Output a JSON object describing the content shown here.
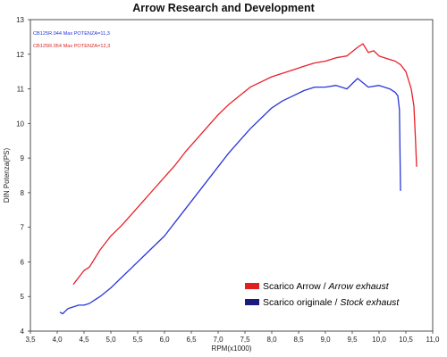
{
  "chart_data": {
    "type": "line",
    "title": "Arrow Research and Development",
    "xlabel": "RPM(x1000)",
    "ylabel": "DIN Potenza(PS)",
    "xlim": [
      3.5,
      11.0
    ],
    "ylim": [
      4,
      13
    ],
    "x_ticks": [
      "3,5",
      "4,0",
      "4,5",
      "5,0",
      "5,5",
      "6,0",
      "6,5",
      "7,0",
      "7,5",
      "8,0",
      "8,5",
      "9,0",
      "9,5",
      "10,0",
      "10,5",
      "11,0"
    ],
    "y_ticks": [
      "4",
      "5",
      "6",
      "7",
      "8",
      "9",
      "10",
      "11",
      "12",
      "13"
    ],
    "grid": false,
    "annotations": [
      {
        "text": "CB125R.044  Max POTENZA=11,3",
        "color": "#2233dd"
      },
      {
        "text": "CB125R.054  Max POTENZA=12,3",
        "color": "#dd2222"
      }
    ],
    "legend": {
      "position": "bottom-right",
      "entries": [
        {
          "series": "arrow",
          "normal": "Scarico Arrow / ",
          "italic": "Arrow exhaust",
          "color": "#e02020"
        },
        {
          "series": "stock",
          "normal": "Scarico originale / ",
          "italic": "Stock exhaust",
          "color": "#1a1a80"
        }
      ]
    },
    "series": [
      {
        "id": "arrow",
        "color": "#e8202a",
        "x": [
          4.3,
          4.4,
          4.5,
          4.6,
          4.7,
          4.8,
          4.9,
          5.0,
          5.2,
          5.4,
          5.6,
          5.8,
          6.0,
          6.2,
          6.4,
          6.6,
          6.8,
          7.0,
          7.2,
          7.4,
          7.6,
          7.8,
          8.0,
          8.2,
          8.4,
          8.6,
          8.8,
          9.0,
          9.2,
          9.4,
          9.6,
          9.7,
          9.8,
          9.9,
          10.0,
          10.1,
          10.2,
          10.3,
          10.4,
          10.5,
          10.6,
          10.65,
          10.68,
          10.7
        ],
        "y": [
          5.35,
          5.55,
          5.75,
          5.85,
          6.1,
          6.35,
          6.55,
          6.75,
          7.05,
          7.4,
          7.75,
          8.1,
          8.45,
          8.8,
          9.2,
          9.55,
          9.9,
          10.25,
          10.55,
          10.8,
          11.05,
          11.2,
          11.35,
          11.45,
          11.55,
          11.65,
          11.75,
          11.8,
          11.9,
          11.95,
          12.2,
          12.3,
          12.05,
          12.1,
          11.95,
          11.9,
          11.85,
          11.8,
          11.7,
          11.5,
          11.0,
          10.5,
          9.5,
          8.75
        ]
      },
      {
        "id": "stock",
        "color": "#2a36d8",
        "x": [
          4.05,
          4.1,
          4.2,
          4.3,
          4.4,
          4.5,
          4.6,
          4.7,
          4.8,
          5.0,
          5.2,
          5.4,
          5.6,
          5.8,
          6.0,
          6.2,
          6.4,
          6.6,
          6.8,
          7.0,
          7.2,
          7.4,
          7.6,
          7.8,
          8.0,
          8.2,
          8.4,
          8.6,
          8.8,
          9.0,
          9.2,
          9.4,
          9.6,
          9.8,
          10.0,
          10.2,
          10.3,
          10.35,
          10.38,
          10.4
        ],
        "y": [
          4.55,
          4.5,
          4.65,
          4.7,
          4.75,
          4.75,
          4.8,
          4.9,
          5.0,
          5.25,
          5.55,
          5.85,
          6.15,
          6.45,
          6.75,
          7.15,
          7.55,
          7.95,
          8.35,
          8.75,
          9.15,
          9.5,
          9.85,
          10.15,
          10.45,
          10.65,
          10.8,
          10.95,
          11.05,
          11.05,
          11.1,
          11.0,
          11.3,
          11.05,
          11.1,
          11.0,
          10.9,
          10.8,
          10.4,
          8.05
        ]
      }
    ]
  }
}
